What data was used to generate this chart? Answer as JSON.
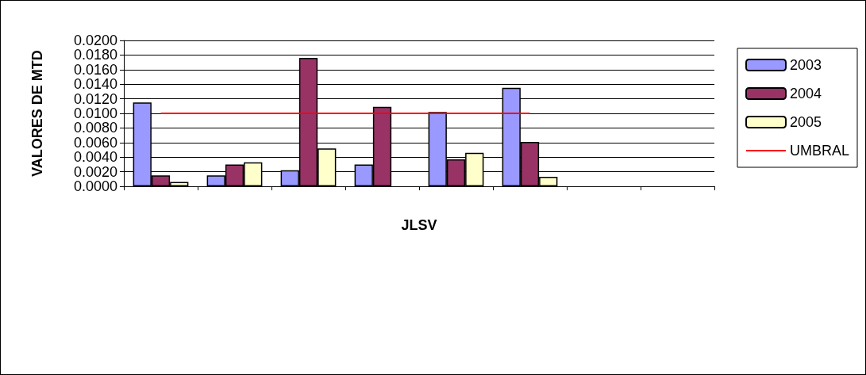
{
  "chart_data": {
    "type": "bar",
    "xlabel": "JLSV",
    "ylabel": "VALORES DE MTD",
    "categories": [
      null,
      null,
      null,
      null,
      null,
      null,
      null,
      null
    ],
    "series": [
      {
        "name": "2003",
        "color": "#9999ff",
        "values": [
          0.0115,
          0.0015,
          0.0022,
          0.003,
          0.0102,
          0.0135,
          null,
          null
        ]
      },
      {
        "name": "2004",
        "color": "#993366",
        "values": [
          0.0015,
          0.003,
          0.0176,
          0.0109,
          0.0037,
          0.0061,
          null,
          null
        ]
      },
      {
        "name": "2005",
        "color": "#ffffcc",
        "values": [
          0.0006,
          0.0033,
          0.0052,
          null,
          0.0046,
          0.0013,
          null,
          null
        ]
      },
      {
        "name": "UMBRAL",
        "type": "line",
        "color": "#ff0000",
        "marker": "none",
        "values": [
          0.01,
          0.01,
          0.01,
          0.01,
          0.01,
          0.01,
          null,
          null
        ]
      }
    ],
    "ylim": [
      0,
      0.02
    ],
    "yticks": [
      {
        "value": 0,
        "label": "0.0000"
      },
      {
        "value": 0.002,
        "label": "0.0020"
      },
      {
        "value": 0.004,
        "label": "0.0040"
      },
      {
        "value": 0.006,
        "label": "0.0060"
      },
      {
        "value": 0.008,
        "label": "0.0080"
      },
      {
        "value": 0.01,
        "label": "0.0100"
      },
      {
        "value": 0.012,
        "label": "0.0120"
      },
      {
        "value": 0.014,
        "label": "0.0140"
      },
      {
        "value": 0.016,
        "label": "0.0160"
      },
      {
        "value": 0.018,
        "label": "0.0180"
      },
      {
        "value": 0.02,
        "label": "0.0200"
      }
    ],
    "grid": "y",
    "legend": "right"
  }
}
